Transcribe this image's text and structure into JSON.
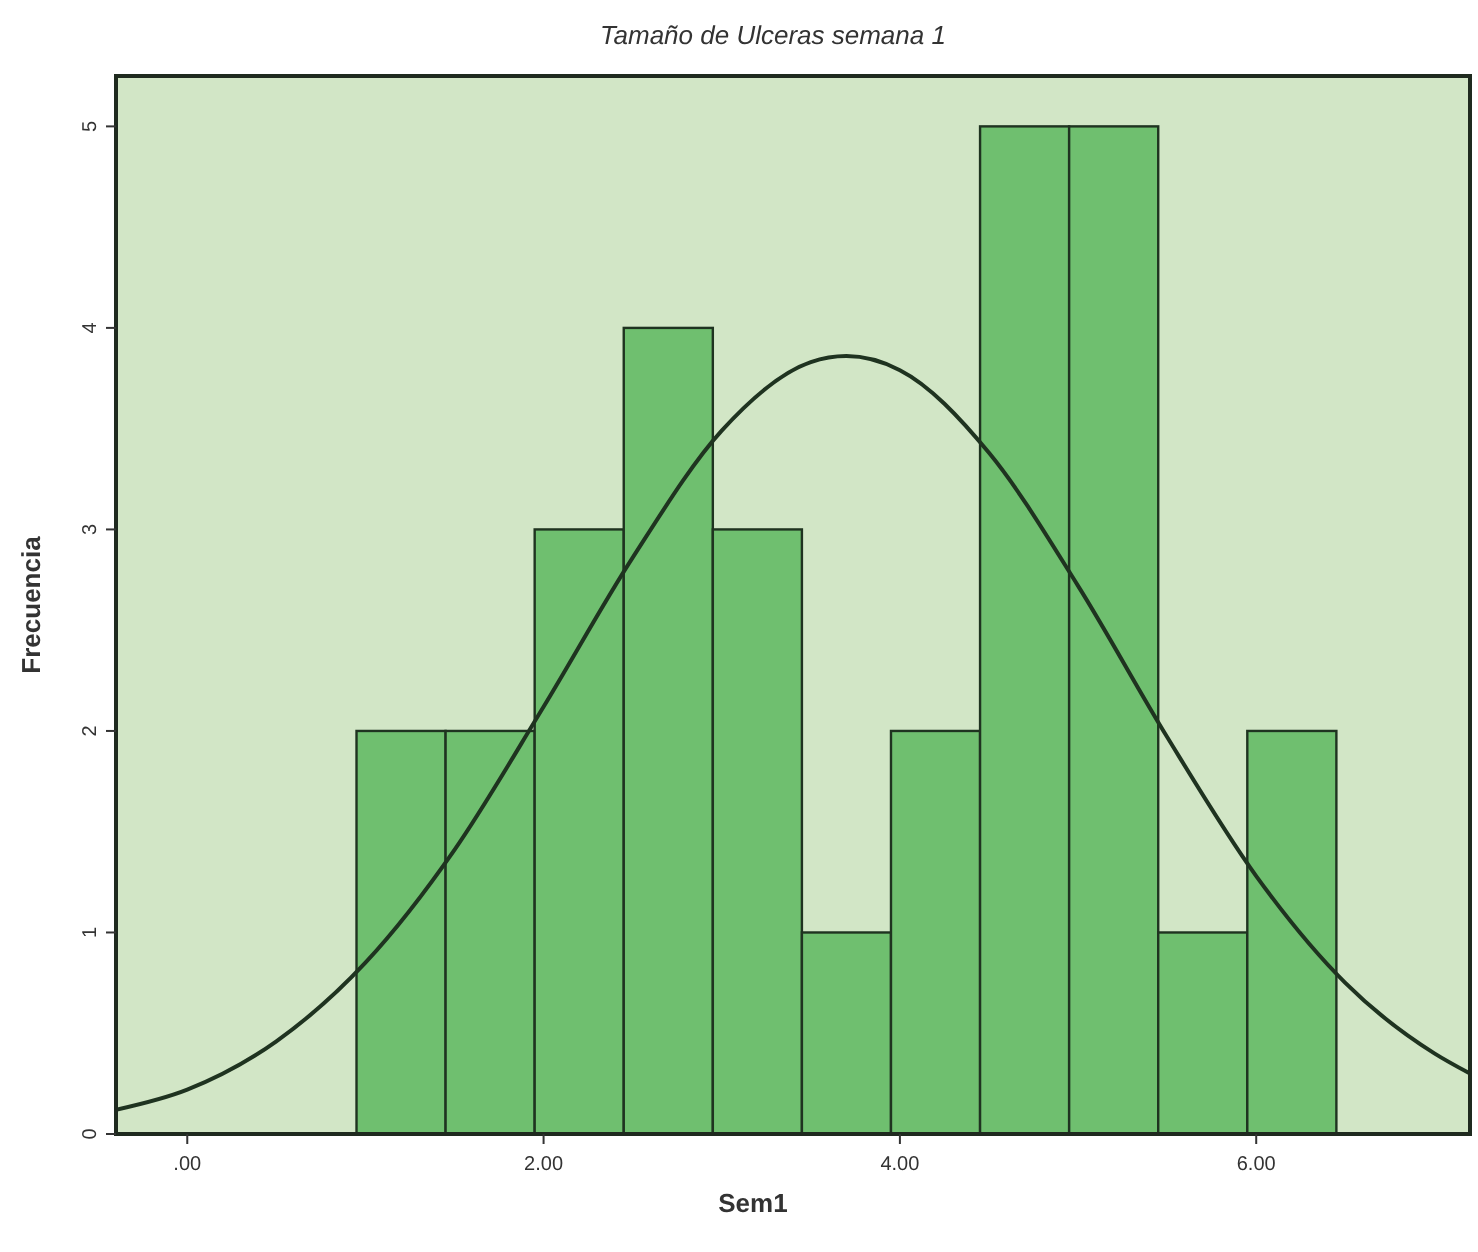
{
  "chart_data": {
    "type": "histogram",
    "title": "Tamaño de Ulceras semana 1",
    "xlabel": "Sem1",
    "ylabel": "Frecuencia",
    "xlim": [
      -0.4,
      7.2
    ],
    "xticks": [
      {
        "value": 0,
        "label": ".00"
      },
      {
        "value": 2,
        "label": "2.00"
      },
      {
        "value": 4,
        "label": "4.00"
      },
      {
        "value": 6,
        "label": "6.00"
      }
    ],
    "ylim": [
      0,
      5.25
    ],
    "yticks": [
      0,
      1,
      2,
      3,
      4,
      5
    ],
    "grid": false,
    "series": [
      {
        "color": "#6fbf6f",
        "bins": [
          0.95,
          1.45,
          1.95,
          2.45,
          2.95,
          3.45,
          3.95,
          4.45,
          4.95,
          5.45,
          5.95,
          6.45
        ],
        "values": [
          2,
          2,
          3,
          4,
          3,
          1,
          2,
          5,
          5,
          1,
          2
        ]
      },
      {
        "type": "line",
        "color": "#1f3320",
        "x": [
          -0.4,
          0,
          0.5,
          1,
          1.5,
          2,
          2.5,
          3,
          3.5,
          3.7,
          4,
          4.5,
          5,
          5.5,
          6,
          6.5,
          7,
          7.2
        ],
        "values": [
          0.12,
          0.22,
          0.46,
          0.85,
          1.41,
          2.12,
          2.86,
          3.49,
          3.83,
          3.86,
          3.79,
          3.38,
          2.72,
          1.97,
          1.28,
          0.75,
          0.4,
          0.3
        ]
      }
    ]
  }
}
